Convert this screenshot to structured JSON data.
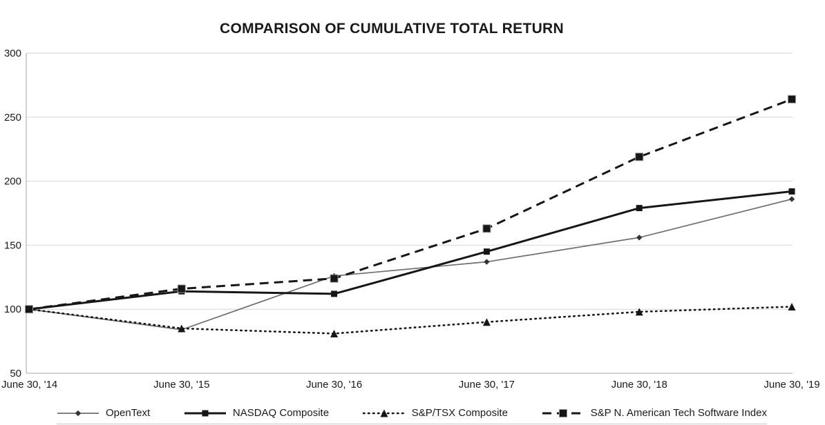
{
  "title": "COMPARISON OF CUMULATIVE TOTAL RETURN",
  "axis": {
    "y_tick_labels": [
      "50",
      "100",
      "150",
      "200",
      "250",
      "300"
    ],
    "x_tick_labels": [
      "June 30, '14",
      "June 30, '15",
      "June 30, '16",
      "June 30, '17",
      "June 30, '18",
      "June 30, '19"
    ]
  },
  "colors": {
    "grid": "#d6d6d6",
    "axis": "#a6a6a6",
    "text": "#1a1a1a",
    "opentext_line": "#6e6e6e",
    "black_line": "#161616"
  },
  "chart_data": {
    "type": "line",
    "title": "COMPARISON OF CUMULATIVE TOTAL RETURN",
    "categories": [
      "June 30, '14",
      "June 30, '15",
      "June 30, '16",
      "June 30, '17",
      "June 30, '18",
      "June 30, '19"
    ],
    "series": [
      {
        "name": "OpenText",
        "values": [
          100,
          84,
          126,
          137,
          156,
          186
        ],
        "color": "#6e6e6e",
        "marker_color": "#333333",
        "dash": "solid",
        "marker": "diamond",
        "width": 1.7
      },
      {
        "name": "NASDAQ Composite",
        "values": [
          100,
          114,
          112,
          145,
          179,
          192
        ],
        "color": "#161616",
        "marker_color": "#161616",
        "dash": "solid",
        "marker": "square",
        "width": 3
      },
      {
        "name": "S&P/TSX Composite",
        "values": [
          100,
          85,
          81,
          90,
          98,
          102
        ],
        "color": "#161616",
        "marker_color": "#161616",
        "dash": "dotted",
        "marker": "triangle",
        "width": 2.6
      },
      {
        "name": "S&P N. American Tech Software Index",
        "values": [
          100,
          116,
          124,
          163,
          219,
          264
        ],
        "color": "#161616",
        "marker_color": "#161616",
        "dash": "dashed",
        "marker": "square-large",
        "width": 3
      }
    ],
    "xlabel": "",
    "ylabel": "",
    "ylim": [
      50,
      300
    ],
    "yticks": [
      50,
      100,
      150,
      200,
      250,
      300
    ],
    "grid": "horizontal",
    "legend_position": "bottom"
  }
}
